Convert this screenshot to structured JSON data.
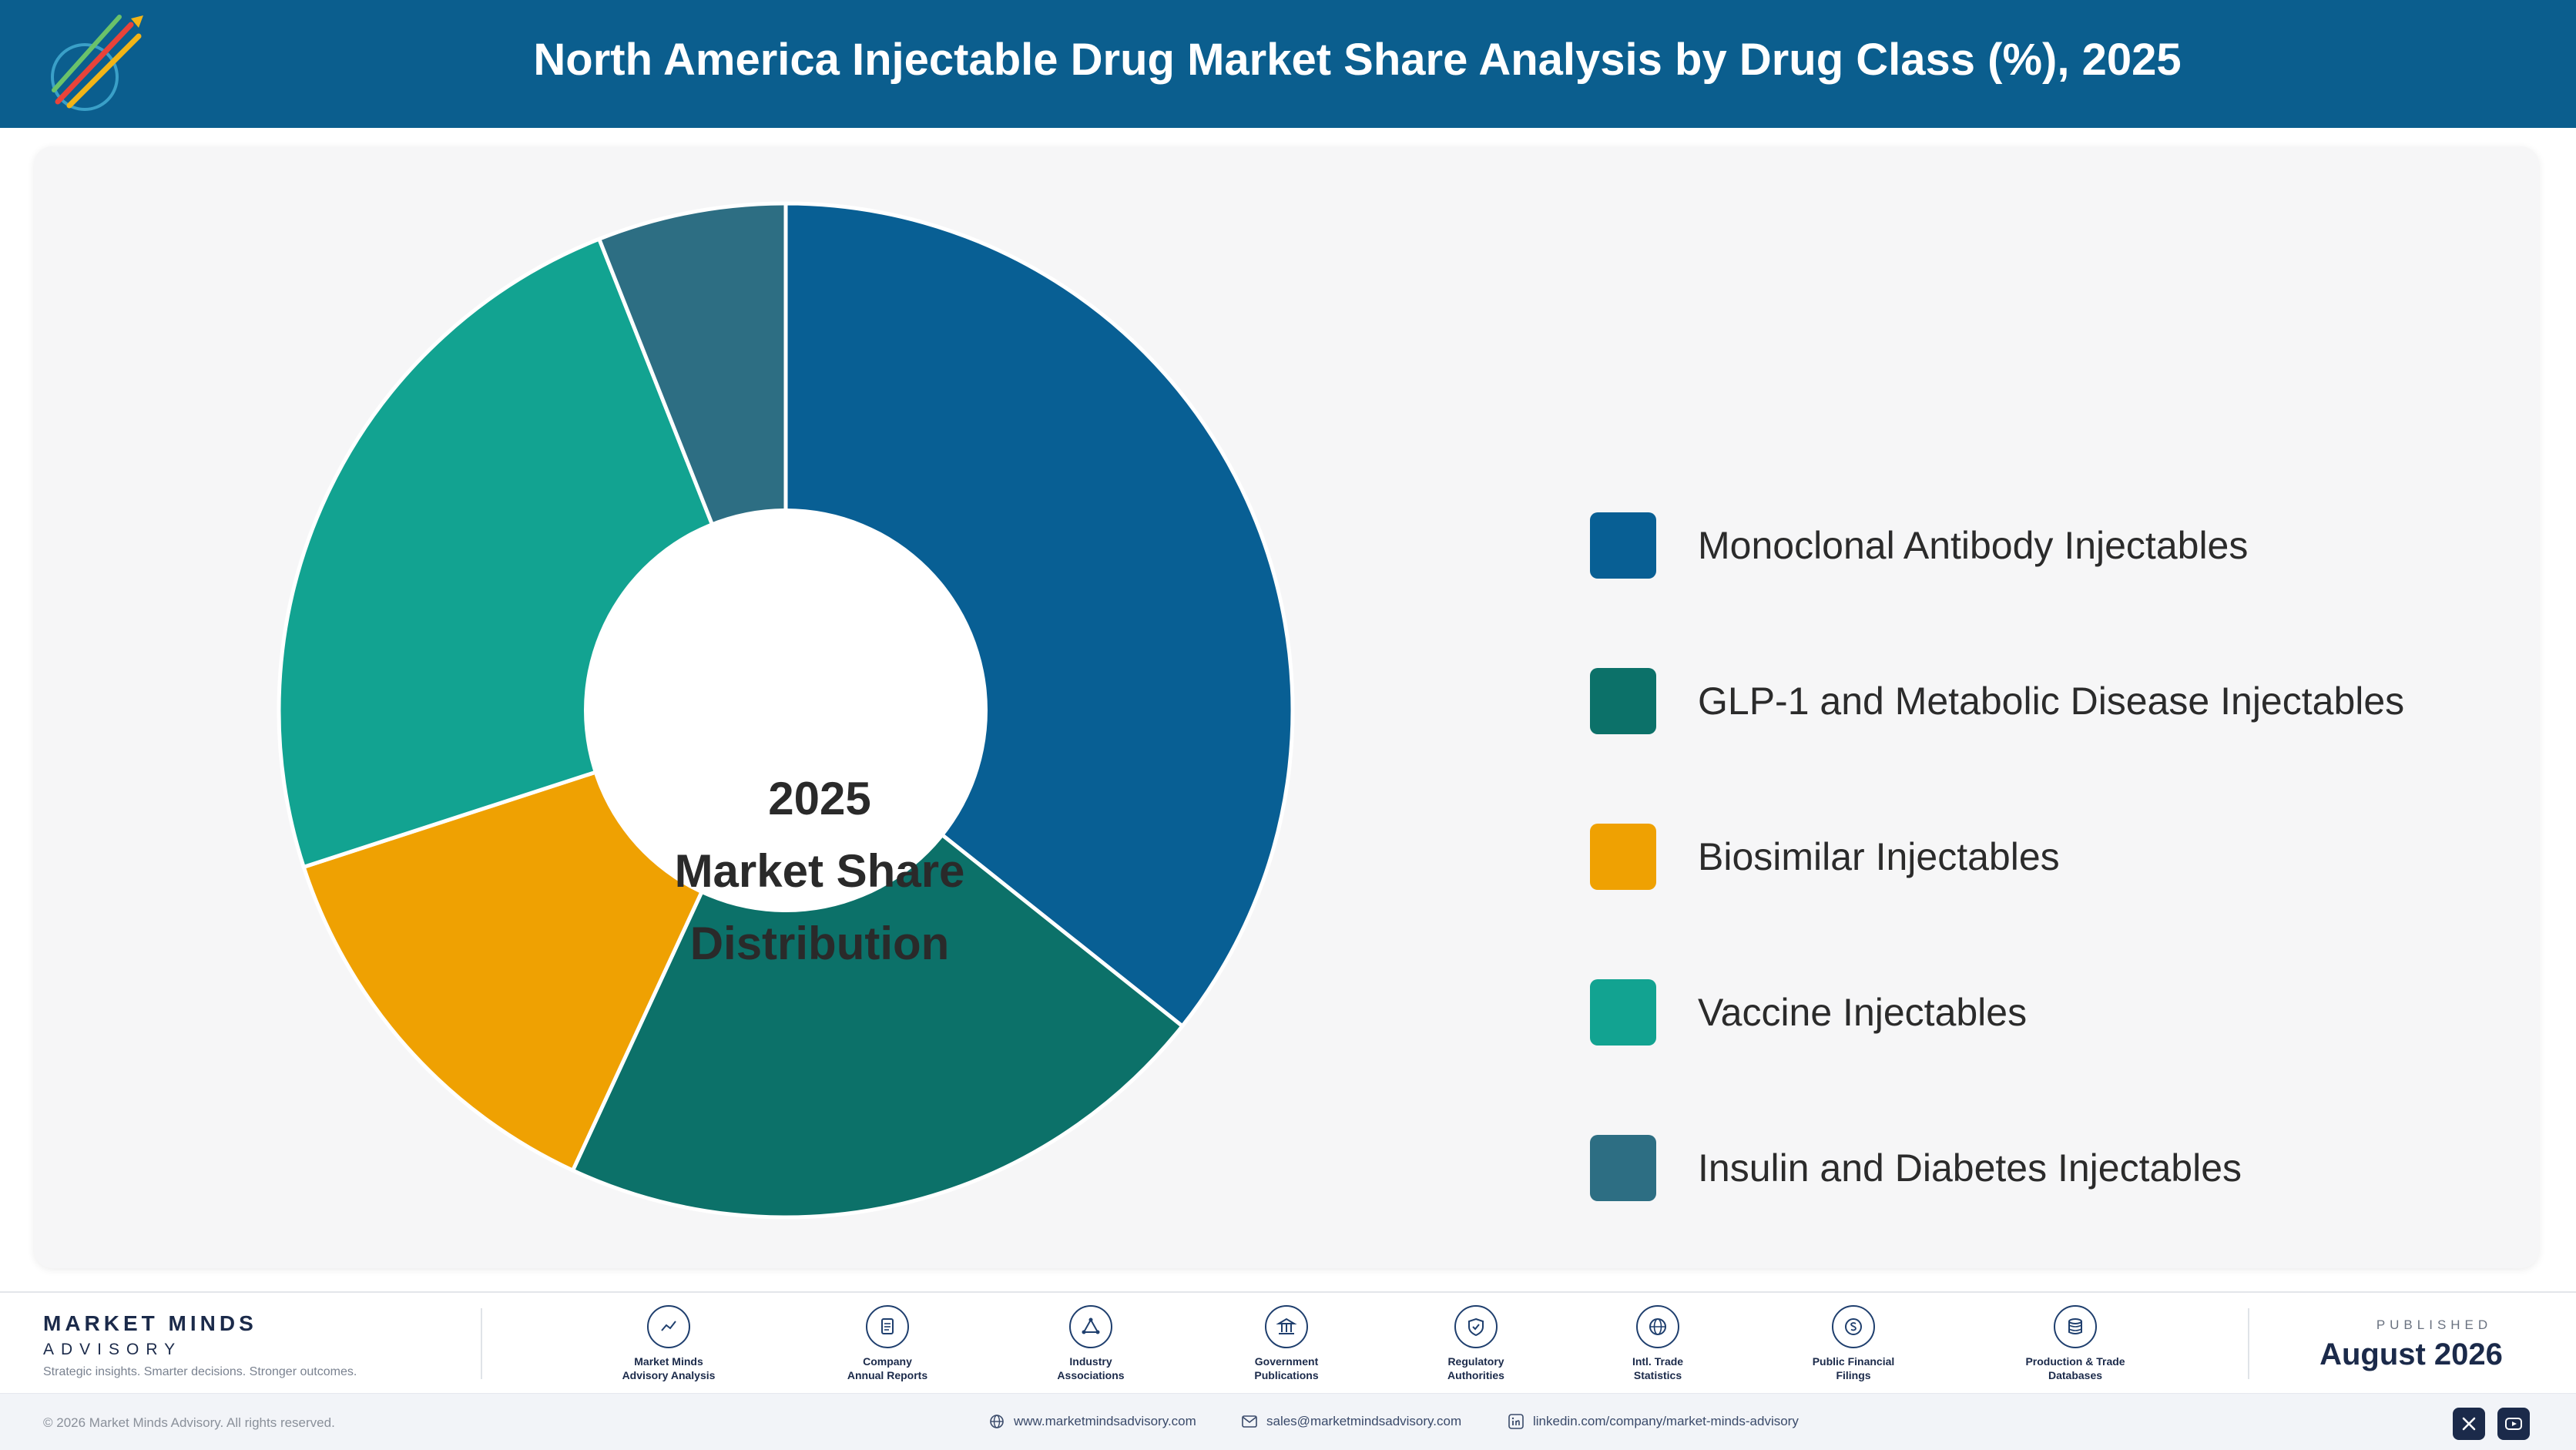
{
  "header": {
    "title": "North America Injectable Drug Market Share Analysis by Drug Class (%), 2025"
  },
  "chart_data": {
    "type": "pie",
    "title": "North America Injectable Drug Market Share Analysis by Drug Class (%), 2025",
    "center_label": [
      "2025",
      "Market Share",
      "Distribution"
    ],
    "categories": [
      "Monoclonal Antibody Injectables",
      "GLP-1 and Metabolic Disease Injectables",
      "Biosimilar Injectables",
      "Vaccine Injectables",
      "Insulin and Diabetes Injectables"
    ],
    "values": [
      35.7,
      21.2,
      13.1,
      24.0,
      6.0
    ],
    "colors": [
      "#085f94",
      "#0c7169",
      "#efa102",
      "#12a391",
      "#2d6e83"
    ],
    "legend_position": "right"
  },
  "footer": {
    "brand_name": "MARKET MINDS",
    "brand_sub": "ADVISORY",
    "tagline": "Strategic insights. Smarter decisions. Stronger outcomes.",
    "sources": [
      {
        "line1": "Market Minds",
        "line2": "Advisory Analysis",
        "icon": "trend-icon"
      },
      {
        "line1": "Company",
        "line2": "Annual Reports",
        "icon": "document-icon"
      },
      {
        "line1": "Industry",
        "line2": "Associations",
        "icon": "network-icon"
      },
      {
        "line1": "Government",
        "line2": "Publications",
        "icon": "building-icon"
      },
      {
        "line1": "Regulatory",
        "line2": "Authorities",
        "icon": "shield-icon"
      },
      {
        "line1": "Intl. Trade",
        "line2": "Statistics",
        "icon": "globe-icon"
      },
      {
        "line1": "Public Financial",
        "line2": "Filings",
        "icon": "coin-icon"
      },
      {
        "line1": "Production & Trade",
        "line2": "Databases",
        "icon": "database-icon"
      }
    ],
    "published_label": "PUBLISHED",
    "published_date": "August 2026",
    "copyright": "© 2026 Market Minds Advisory. All rights reserved.",
    "website": "www.marketmindsadvisory.com",
    "email": "sales@marketmindsadvisory.com",
    "linkedin": "linkedin.com/company/market-minds-advisory"
  }
}
